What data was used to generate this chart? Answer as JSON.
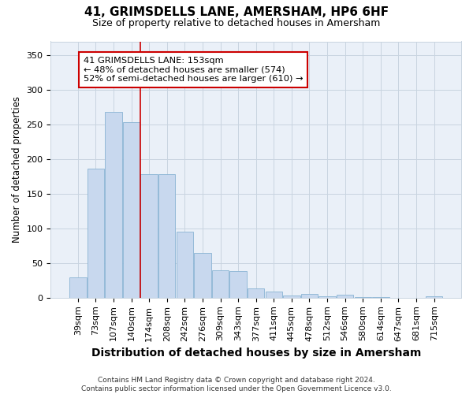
{
  "title": "41, GRIMSDELLS LANE, AMERSHAM, HP6 6HF",
  "subtitle": "Size of property relative to detached houses in Amersham",
  "xlabel": "Distribution of detached houses by size in Amersham",
  "ylabel": "Number of detached properties",
  "footnote": "Contains HM Land Registry data © Crown copyright and database right 2024.\nContains public sector information licensed under the Open Government Licence v3.0.",
  "bar_color": "#c8d8ee",
  "bar_edge_color": "#8ab4d4",
  "categories": [
    "39sqm",
    "73sqm",
    "107sqm",
    "140sqm",
    "174sqm",
    "208sqm",
    "242sqm",
    "276sqm",
    "309sqm",
    "343sqm",
    "377sqm",
    "411sqm",
    "445sqm",
    "478sqm",
    "512sqm",
    "546sqm",
    "580sqm",
    "614sqm",
    "647sqm",
    "681sqm",
    "715sqm"
  ],
  "values": [
    29,
    186,
    268,
    253,
    178,
    178,
    95,
    65,
    40,
    38,
    14,
    9,
    3,
    5,
    2,
    4,
    1,
    1,
    0,
    0,
    2
  ],
  "property_line_x": 3.5,
  "property_line_color": "#cc0000",
  "annotation_text": "41 GRIMSDELLS LANE: 153sqm\n← 48% of detached houses are smaller (574)\n52% of semi-detached houses are larger (610) →",
  "ylim": [
    0,
    370
  ],
  "yticks": [
    0,
    50,
    100,
    150,
    200,
    250,
    300,
    350
  ],
  "bg_color": "#ffffff",
  "plot_bg_color": "#eaf0f8",
  "grid_color": "#c8d4e0",
  "title_fontsize": 11,
  "subtitle_fontsize": 9,
  "ylabel_fontsize": 8.5,
  "xlabel_fontsize": 10,
  "tick_fontsize": 8,
  "footnote_fontsize": 6.5
}
